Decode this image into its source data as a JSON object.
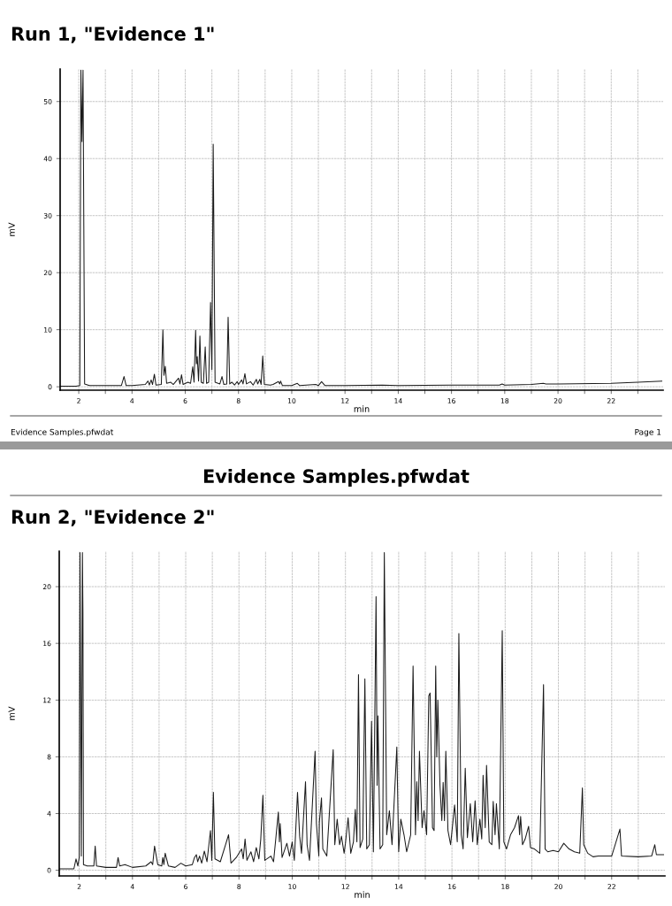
{
  "chart_data": [
    {
      "type": "line",
      "subtitle": "Run 1, \"Evidence 1\"",
      "xlabel": "min",
      "ylabel": "mV",
      "annotations": [
        "Evidence Samples.pfwdat",
        "Page 1"
      ],
      "grid": true,
      "marker": "none",
      "line_style": "solid",
      "xlim": [
        1.3,
        23.95
      ],
      "ylim": [
        -0.6,
        55.7
      ],
      "xticks": [
        2,
        {
          "value": 3,
          "label": null
        },
        4,
        {
          "value": 5,
          "label": null
        },
        6,
        {
          "value": 7,
          "label": null
        },
        8,
        {
          "value": 9,
          "label": null
        },
        10,
        {
          "value": 11,
          "label": null
        },
        12,
        {
          "value": 13,
          "label": null
        },
        14,
        {
          "value": 15,
          "label": null
        },
        16,
        {
          "value": 17,
          "label": null
        },
        18,
        {
          "value": 19,
          "label": null
        },
        20,
        {
          "value": 21,
          "label": null
        },
        22,
        {
          "value": 23,
          "label": null
        }
      ],
      "yticks": [
        0,
        10,
        20,
        30,
        40,
        50
      ],
      "series": [
        {
          "color": "#1a1a1a",
          "x": [
            1.3,
            1.9,
            2.04,
            2.08,
            2.12,
            2.16,
            2.22,
            2.4,
            3.6,
            3.7,
            3.78,
            4.0,
            4.5,
            4.6,
            4.65,
            4.72,
            4.77,
            4.84,
            4.9,
            5.1,
            5.16,
            5.2,
            5.25,
            5.3,
            5.45,
            5.55,
            5.75,
            5.8,
            5.86,
            5.92,
            6.1,
            6.2,
            6.28,
            6.33,
            6.39,
            6.42,
            6.45,
            6.5,
            6.55,
            6.6,
            6.68,
            6.75,
            6.8,
            6.88,
            6.95,
            7.0,
            7.05,
            7.12,
            7.3,
            7.38,
            7.45,
            7.56,
            7.61,
            7.67,
            7.75,
            7.85,
            7.95,
            8.0,
            8.12,
            8.17,
            8.24,
            8.3,
            8.45,
            8.55,
            8.67,
            8.72,
            8.8,
            8.85,
            8.91,
            8.97,
            9.2,
            9.3,
            9.5,
            9.55,
            9.58,
            9.65,
            10.0,
            10.21,
            10.3,
            10.9,
            11.0,
            11.12,
            11.25,
            12.0,
            13.4,
            14.0,
            16.0,
            17.8,
            17.9,
            18.0,
            19.0,
            19.45,
            19.55,
            20.0,
            22.0,
            23.0,
            23.9
          ],
          "values": [
            0.1,
            0.1,
            0.2,
            55.5,
            43,
            55.5,
            0.5,
            0.2,
            0.2,
            1.8,
            0.2,
            0.2,
            0.4,
            1.0,
            0.3,
            1.2,
            0.4,
            2.2,
            0.3,
            0.4,
            10.0,
            2.0,
            3.6,
            0.6,
            0.8,
            0.4,
            1.5,
            0.5,
            2.1,
            0.4,
            0.8,
            0.6,
            3.5,
            0.8,
            9.9,
            4.0,
            5.3,
            1.0,
            8.9,
            0.8,
            0.6,
            7.0,
            0.6,
            0.8,
            14.8,
            3.0,
            42.5,
            0.8,
            0.5,
            1.8,
            0.4,
            0.5,
            12.2,
            0.5,
            0.8,
            0.3,
            0.9,
            0.4,
            1.2,
            0.5,
            2.3,
            0.5,
            0.9,
            0.3,
            1.3,
            0.5,
            1.3,
            0.4,
            5.4,
            0.4,
            0.3,
            0.4,
            0.9,
            0.5,
            1.0,
            0.2,
            0.2,
            0.6,
            0.2,
            0.4,
            0.2,
            0.9,
            0.2,
            0.2,
            0.3,
            0.2,
            0.3,
            0.3,
            0.5,
            0.3,
            0.4,
            0.6,
            0.5,
            0.5,
            0.6,
            0.8,
            1.0
          ]
        }
      ]
    },
    {
      "type": "line",
      "title": "Evidence Samples.pfwdat",
      "subtitle": "Run 2, \"Evidence 2\"",
      "xlabel": "min",
      "ylabel": "mV",
      "grid": true,
      "marker": "none",
      "line_style": "solid",
      "xlim": [
        1.25,
        24.0
      ],
      "ylim": [
        -0.4,
        22.5
      ],
      "xticks": [
        2,
        {
          "value": 3,
          "label": null
        },
        4,
        {
          "value": 5,
          "label": null
        },
        6,
        {
          "value": 7,
          "label": null
        },
        8,
        {
          "value": 9,
          "label": null
        },
        10,
        {
          "value": 11,
          "label": null
        },
        12,
        {
          "value": 13,
          "label": null
        },
        14,
        {
          "value": 15,
          "label": null
        },
        16,
        {
          "value": 17,
          "label": null
        },
        18,
        {
          "value": 19,
          "label": null
        },
        20,
        {
          "value": 21,
          "label": null
        },
        22,
        {
          "value": 23,
          "label": null
        }
      ],
      "yticks": [
        0,
        4,
        8,
        12,
        16,
        20
      ],
      "series": [
        {
          "color": "#1a1a1a",
          "x": [
            1.25,
            1.8,
            1.88,
            1.95,
            2.0,
            2.03,
            2.08,
            2.12,
            2.14,
            2.16,
            2.3,
            2.55,
            2.6,
            2.65,
            3.0,
            3.4,
            3.46,
            3.52,
            3.72,
            4.0,
            4.5,
            4.7,
            4.76,
            4.83,
            4.95,
            5.1,
            5.14,
            5.18,
            5.23,
            5.35,
            5.6,
            5.82,
            6.0,
            6.25,
            6.33,
            6.4,
            6.45,
            6.52,
            6.6,
            6.7,
            6.8,
            6.93,
            6.98,
            7.04,
            7.1,
            7.3,
            7.61,
            7.7,
            7.9,
            8.1,
            8.16,
            8.23,
            8.3,
            8.45,
            8.55,
            8.65,
            8.75,
            8.82,
            8.9,
            8.97,
            9.2,
            9.3,
            9.48,
            9.52,
            9.55,
            9.62,
            9.8,
            9.9,
            10.0,
            10.08,
            10.2,
            10.28,
            10.35,
            10.5,
            10.56,
            10.65,
            10.86,
            10.91,
            11.0,
            11.02,
            11.1,
            11.15,
            11.3,
            11.54,
            11.6,
            11.69,
            11.78,
            11.85,
            11.95,
            12.0,
            12.1,
            12.2,
            12.3,
            12.37,
            12.43,
            12.49,
            12.55,
            12.65,
            12.73,
            12.8,
            12.9,
            12.98,
            13.05,
            13.15,
            13.19,
            13.22,
            13.3,
            13.4,
            13.46,
            13.55,
            13.65,
            13.75,
            13.86,
            13.93,
            14.0,
            14.08,
            14.2,
            14.3,
            14.45,
            14.54,
            14.63,
            14.68,
            14.73,
            14.78,
            14.88,
            14.95,
            15.05,
            15.13,
            15.18,
            15.27,
            15.33,
            15.39,
            15.43,
            15.47,
            15.55,
            15.62,
            15.67,
            15.72,
            15.77,
            15.85,
            15.95,
            16.1,
            16.2,
            16.26,
            16.35,
            16.42,
            16.5,
            16.58,
            16.69,
            16.78,
            16.87,
            16.95,
            17.05,
            17.12,
            17.17,
            17.25,
            17.3,
            17.4,
            17.5,
            17.55,
            17.62,
            17.67,
            17.78,
            17.89,
            17.95,
            18.05,
            18.2,
            18.35,
            18.5,
            18.54,
            18.58,
            18.65,
            18.75,
            18.88,
            18.95,
            19.1,
            19.3,
            19.44,
            19.5,
            19.6,
            19.8,
            20.0,
            20.2,
            20.4,
            20.6,
            20.8,
            20.9,
            20.95,
            21.1,
            21.3,
            21.5,
            22.0,
            22.31,
            22.37,
            23.0,
            23.5,
            23.62,
            23.68,
            23.95
          ],
          "values": [
            0.1,
            0.1,
            0.8,
            0.3,
            0.9,
            22.4,
            1.0,
            22.4,
            18.2,
            0.4,
            0.3,
            0.3,
            1.7,
            0.3,
            0.2,
            0.2,
            0.9,
            0.3,
            0.4,
            0.2,
            0.3,
            0.6,
            0.4,
            1.7,
            0.4,
            0.3,
            0.9,
            0.4,
            1.2,
            0.3,
            0.2,
            0.5,
            0.3,
            0.4,
            0.9,
            1.1,
            0.6,
            1.0,
            0.5,
            1.35,
            0.6,
            2.8,
            0.7,
            5.5,
            0.8,
            0.6,
            2.5,
            0.5,
            0.9,
            1.5,
            0.8,
            2.2,
            0.7,
            1.3,
            0.6,
            1.6,
            0.8,
            2.2,
            5.3,
            0.7,
            1.0,
            0.6,
            4.1,
            2.0,
            3.3,
            0.9,
            1.9,
            1.0,
            2.0,
            0.7,
            5.5,
            2.4,
            1.2,
            6.25,
            1.8,
            0.7,
            8.4,
            3.3,
            1.0,
            3.4,
            5.1,
            1.5,
            1.0,
            8.5,
            1.8,
            3.6,
            1.8,
            2.4,
            1.2,
            1.9,
            3.7,
            1.2,
            2.0,
            4.3,
            2.0,
            13.8,
            1.6,
            2.2,
            13.5,
            1.5,
            1.8,
            10.5,
            1.3,
            19.3,
            6.0,
            10.9,
            1.5,
            1.8,
            22.4,
            2.5,
            4.2,
            1.8,
            6.0,
            8.7,
            1.3,
            3.6,
            2.5,
            1.3,
            2.5,
            14.4,
            2.5,
            6.25,
            3.5,
            8.4,
            3.0,
            4.2,
            2.5,
            12.3,
            12.5,
            3.0,
            2.8,
            14.4,
            8.0,
            12.0,
            6.0,
            3.5,
            6.2,
            3.5,
            8.4,
            2.8,
            1.8,
            4.6,
            2.0,
            16.7,
            2.5,
            1.5,
            7.2,
            2.3,
            4.7,
            2.0,
            4.9,
            1.8,
            3.6,
            2.2,
            6.7,
            3.0,
            7.4,
            2.0,
            1.8,
            4.85,
            2.5,
            4.7,
            1.5,
            16.9,
            2.0,
            1.5,
            2.5,
            3.0,
            3.85,
            2.5,
            3.8,
            1.8,
            2.2,
            3.1,
            1.6,
            1.5,
            1.2,
            13.1,
            1.5,
            1.3,
            1.4,
            1.3,
            1.9,
            1.5,
            1.3,
            1.2,
            5.8,
            1.8,
            1.2,
            0.95,
            1.0,
            1.0,
            2.9,
            1.0,
            0.95,
            1.0,
            1.8,
            1.1,
            1.1
          ]
        }
      ]
    }
  ]
}
